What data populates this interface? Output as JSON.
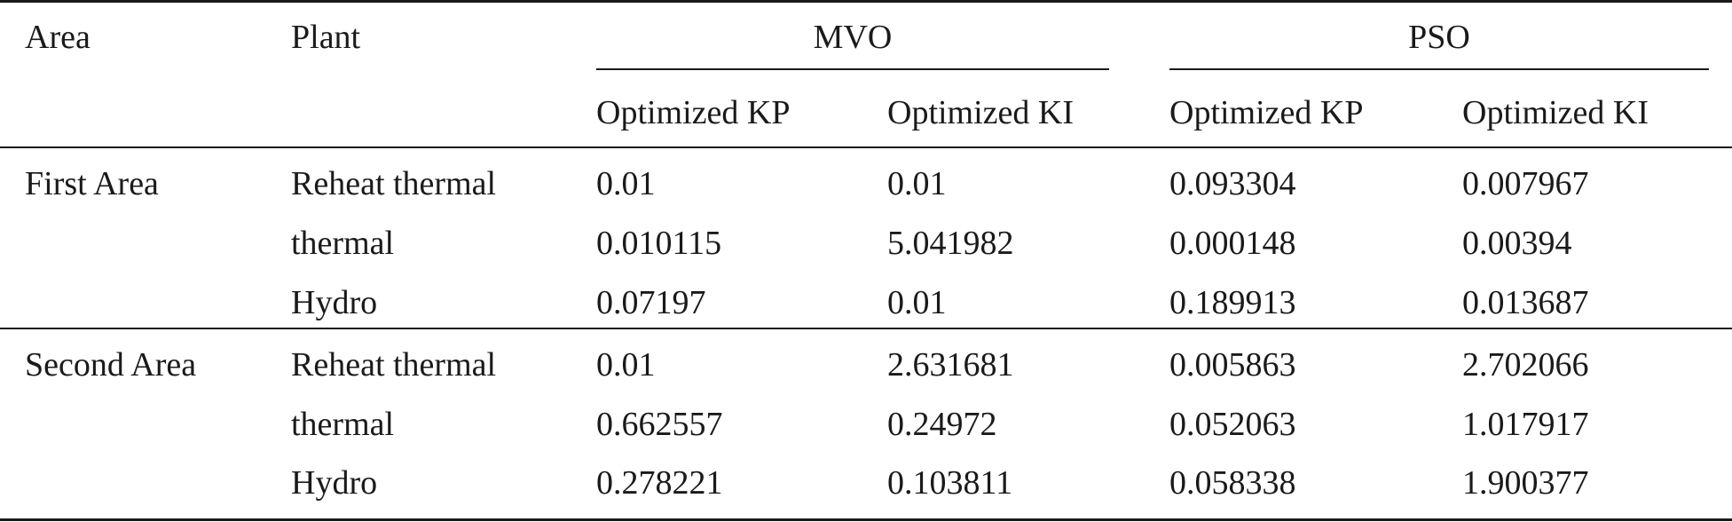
{
  "header": {
    "area": "Area",
    "plant": "Plant",
    "groups": [
      "MVO",
      "PSO"
    ],
    "subheaders": [
      "Optimized KP",
      "Optimized KI",
      "Optimized KP",
      "Optimized KI"
    ]
  },
  "rows": [
    {
      "area": "First Area",
      "plant": "Reheat thermal",
      "values": [
        "0.01",
        "0.01",
        "0.093304",
        "0.007967"
      ]
    },
    {
      "area": "",
      "plant": "thermal",
      "values": [
        "0.010115",
        "5.041982",
        "0.000148",
        "0.00394"
      ]
    },
    {
      "area": "",
      "plant": "Hydro",
      "values": [
        "0.07197",
        "0.01",
        "0.189913",
        "0.013687"
      ]
    },
    {
      "area": "Second Area",
      "plant": "Reheat thermal",
      "values": [
        "0.01",
        "2.631681",
        "0.005863",
        "2.702066"
      ]
    },
    {
      "area": "",
      "plant": "thermal",
      "values": [
        "0.662557",
        "0.24972",
        "0.052063",
        "1.017917"
      ]
    },
    {
      "area": "",
      "plant": "Hydro",
      "values": [
        "0.278221",
        "0.103811",
        "0.058338",
        "1.900377"
      ]
    }
  ]
}
